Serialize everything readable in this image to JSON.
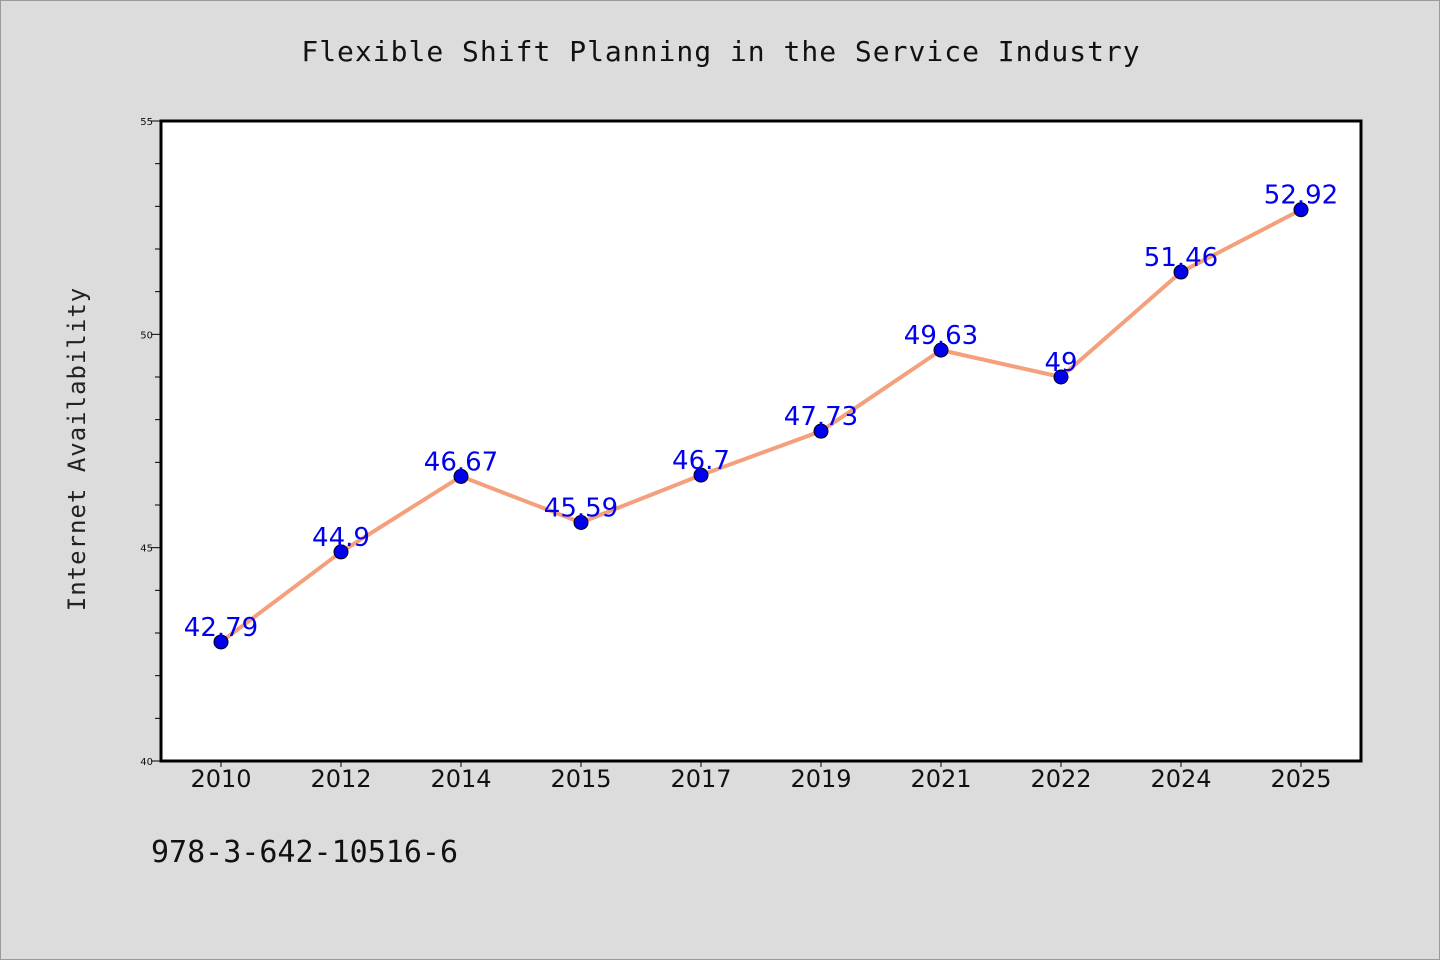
{
  "chart_data": {
    "type": "line",
    "title": "Flexible Shift Planning in the Service Industry",
    "ylabel": "Internet Availability",
    "xlabel": "",
    "categories": [
      "2010",
      "2012",
      "2014",
      "2015",
      "2017",
      "2019",
      "2021",
      "2022",
      "2024",
      "2025"
    ],
    "series": [
      {
        "values": [
          42.79,
          44.9,
          46.67,
          45.59,
          46.7,
          47.73,
          49.63,
          49,
          51.46,
          52.92
        ],
        "data_labels": [
          "42.79",
          "44.9",
          "46.67",
          "45.59",
          "46.7",
          "47.73",
          "49.63",
          "49",
          "51.46",
          "52.92"
        ],
        "line_color": "#f4a07c",
        "marker_color": "#0000ee",
        "label_color": "#0000ee"
      }
    ],
    "ylim": [
      40,
      55
    ],
    "yticks_major": [
      40,
      45,
      50,
      55
    ],
    "y_minor_step": 1,
    "grid": false,
    "legend": "none"
  },
  "footer": {
    "isbn": "978-3-642-10516-6"
  },
  "colors": {
    "background": "#dcdcdc",
    "plot_background": "#ffffff",
    "axes": "#000000"
  }
}
